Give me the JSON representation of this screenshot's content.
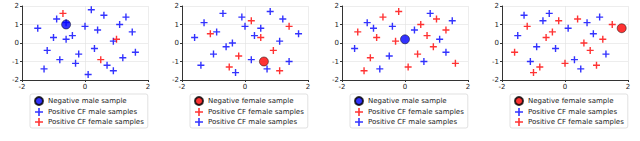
{
  "chart_data": [
    {
      "type": "scatter",
      "xlim": [
        -2,
        2
      ],
      "xticks": [
        -2,
        0,
        2
      ],
      "ylim": [
        -2,
        2
      ],
      "yticks": [
        -2,
        -1,
        0,
        1,
        2
      ],
      "grid": true,
      "legend": "lower center",
      "series": [
        {
          "name": "Negative male sample",
          "color": "#0000ff",
          "marker": "circle",
          "x": [
            -0.6
          ],
          "y": [
            1.0
          ]
        },
        {
          "name": "Positive CF male samples",
          "color": "#0000ff",
          "marker": "plus",
          "x": [
            -1.5,
            -1.2,
            -0.9,
            -0.6,
            -0.3,
            0.0,
            0.3,
            0.6,
            0.9,
            1.2,
            1.5,
            -1.3,
            -0.8,
            -0.4,
            0.2,
            0.7,
            1.1,
            1.6,
            -1.0,
            -0.2,
            0.4,
            0.9,
            1.3,
            -0.6,
            0.1
          ],
          "y": [
            0.8,
            -0.4,
            1.3,
            0.2,
            -1.1,
            0.9,
            -0.3,
            1.5,
            0.1,
            -0.8,
            0.6,
            -1.4,
            -0.9,
            0.4,
            1.8,
            -1.2,
            1.0,
            -0.5,
            0.3,
            -0.6,
            0.7,
            -1.5,
            1.4,
            1.1,
            -1.7
          ]
        },
        {
          "name": "Positive CF female samples",
          "color": "#ff0000",
          "marker": "plus",
          "x": [
            -0.7,
            0.5,
            1.0
          ],
          "y": [
            1.6,
            -0.9,
            0.2
          ]
        }
      ]
    },
    {
      "type": "scatter",
      "xlim": [
        -2,
        2
      ],
      "xticks": [
        -2,
        0,
        2
      ],
      "ylim": [
        -2,
        2
      ],
      "yticks": [
        -2,
        -1,
        0,
        1,
        2
      ],
      "grid": true,
      "legend": "lower center",
      "series": [
        {
          "name": "Negative female sample",
          "color": "#ff0000",
          "marker": "circle",
          "x": [
            0.6
          ],
          "y": [
            -1.0
          ]
        },
        {
          "name": "Positive CF female samples",
          "color": "#ff0000",
          "marker": "plus",
          "x": [
            -1.1,
            -0.5,
            0.2,
            0.9,
            1.4,
            -0.2,
            0.5,
            1.1
          ],
          "y": [
            0.5,
            -1.3,
            1.2,
            -0.4,
            0.9,
            -0.7,
            0.3,
            -1.5
          ]
        },
        {
          "name": "Positive CF male samples",
          "color": "#0000ff",
          "marker": "plus",
          "x": [
            -1.6,
            -1.3,
            -1.0,
            -0.7,
            -0.4,
            -0.1,
            0.2,
            0.5,
            0.8,
            1.1,
            1.4,
            1.7,
            -1.4,
            -0.9,
            -0.3,
            0.3,
            0.7,
            1.2,
            -0.6,
            0.0
          ],
          "y": [
            0.3,
            1.1,
            -0.6,
            1.6,
            0.0,
            1.4,
            -0.9,
            0.8,
            1.7,
            0.1,
            -1.0,
            0.5,
            -1.2,
            0.6,
            -1.6,
            0.4,
            -1.4,
            1.3,
            -0.2,
            0.9
          ]
        }
      ]
    },
    {
      "type": "scatter",
      "xlim": [
        -2,
        2
      ],
      "xticks": [
        -2,
        0,
        2
      ],
      "ylim": [
        -2,
        2
      ],
      "yticks": [
        -2,
        -1,
        0,
        1,
        2
      ],
      "grid": true,
      "legend": "lower center",
      "series": [
        {
          "name": "Negative male sample",
          "color": "#0000ff",
          "marker": "circle",
          "x": [
            0.0
          ],
          "y": [
            0.2
          ]
        },
        {
          "name": "Positive CF female samples",
          "color": "#ff0000",
          "marker": "plus",
          "x": [
            -1.5,
            -1.1,
            -0.7,
            -0.3,
            0.1,
            0.5,
            0.9,
            1.3,
            1.6,
            -0.9,
            -0.2,
            0.4,
            1.0,
            -1.3,
            0.7
          ],
          "y": [
            0.6,
            -0.8,
            1.4,
            0.1,
            -1.3,
            1.0,
            -0.2,
            0.7,
            -1.1,
            0.3,
            1.7,
            -0.6,
            1.3,
            -1.5,
            0.4
          ]
        },
        {
          "name": "Positive CF male samples",
          "color": "#0000ff",
          "marker": "plus",
          "x": [
            -1.6,
            -1.2,
            -0.8,
            -0.4,
            0.3,
            0.6,
            1.1,
            1.5,
            -1.0,
            -0.5,
            0.8,
            1.3
          ],
          "y": [
            -0.3,
            1.1,
            -1.4,
            0.9,
            0.7,
            -1.0,
            0.2,
            1.2,
            0.8,
            -0.7,
            1.6,
            -0.5
          ]
        }
      ]
    },
    {
      "type": "scatter",
      "xlim": [
        -2,
        2
      ],
      "xticks": [
        -2,
        0,
        2
      ],
      "ylim": [
        -2,
        2
      ],
      "yticks": [
        -2,
        -1,
        0,
        1,
        2
      ],
      "grid": true,
      "legend": "lower center",
      "series": [
        {
          "name": "Negative female sample",
          "color": "#ff0000",
          "marker": "circle",
          "x": [
            1.8
          ],
          "y": [
            0.8
          ]
        },
        {
          "name": "Positive CF male samples",
          "color": "#0000ff",
          "marker": "plus",
          "x": [
            -1.5,
            -1.1,
            -0.7,
            -0.3,
            0.1,
            0.5,
            0.9,
            1.3,
            -1.3,
            -0.5,
            0.3,
            0.7,
            1.1,
            -0.9
          ],
          "y": [
            0.4,
            -1.0,
            1.2,
            -0.3,
            0.8,
            -1.4,
            0.5,
            -0.6,
            1.5,
            1.6,
            -0.9,
            1.1,
            1.4,
            -0.2
          ]
        },
        {
          "name": "Positive CF female samples",
          "color": "#ff0000",
          "marker": "plus",
          "x": [
            -1.6,
            -1.2,
            -0.8,
            -0.4,
            0.0,
            0.4,
            0.8,
            1.2,
            1.5,
            -1.0,
            -0.2,
            0.6,
            1.0,
            -0.6
          ],
          "y": [
            -0.5,
            0.9,
            -1.3,
            0.6,
            -1.1,
            1.3,
            -0.4,
            0.2,
            1.0,
            -1.6,
            1.2,
            0.0,
            -1.2,
            0.3
          ]
        }
      ]
    }
  ]
}
